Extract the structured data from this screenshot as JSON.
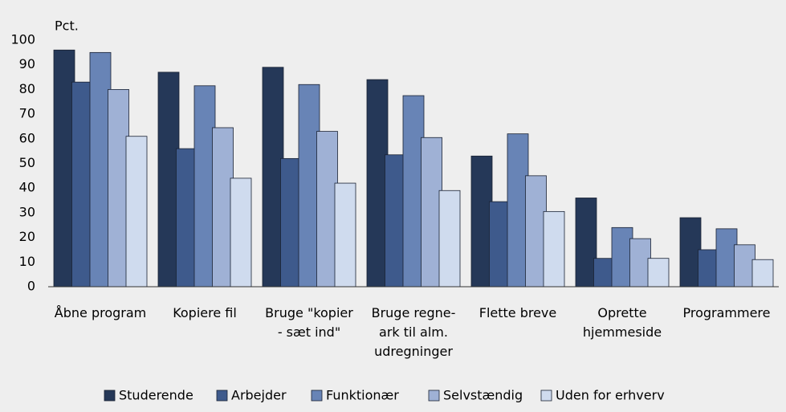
{
  "chart_data": {
    "type": "bar",
    "y_axis_label": "Pct.",
    "categories": [
      "Åbne program",
      "Kopiere fil",
      "Bruge \"kopier - sæt ind\"",
      "Bruge regne-ark til alm. udregninger",
      "Flette breve",
      "Oprette hjemmeside",
      "Programmere"
    ],
    "series": [
      {
        "name": "Studerende",
        "color": "#253858",
        "values": [
          96,
          87,
          89,
          84,
          53,
          36,
          28
        ]
      },
      {
        "name": "Arbejder",
        "color": "#3e5a8c",
        "values": [
          83,
          56,
          52,
          53.5,
          34.5,
          11.5,
          15
        ]
      },
      {
        "name": "Funktionær",
        "color": "#6884b6",
        "values": [
          95,
          81.5,
          82,
          77.5,
          62,
          24,
          23.5
        ]
      },
      {
        "name": "Selvstændig",
        "color": "#9fb1d5",
        "values": [
          80,
          64.5,
          63,
          60.5,
          45,
          19.5,
          17
        ]
      },
      {
        "name": "Uden for erhverv",
        "color": "#cfdbee",
        "values": [
          61,
          44,
          42,
          39,
          30.5,
          11.5,
          11
        ]
      }
    ],
    "ylim": [
      0,
      100
    ],
    "yticks": [
      0,
      10,
      20,
      30,
      40,
      50,
      60,
      70,
      80,
      90,
      100
    ],
    "grid": false,
    "legend": "bottom"
  }
}
